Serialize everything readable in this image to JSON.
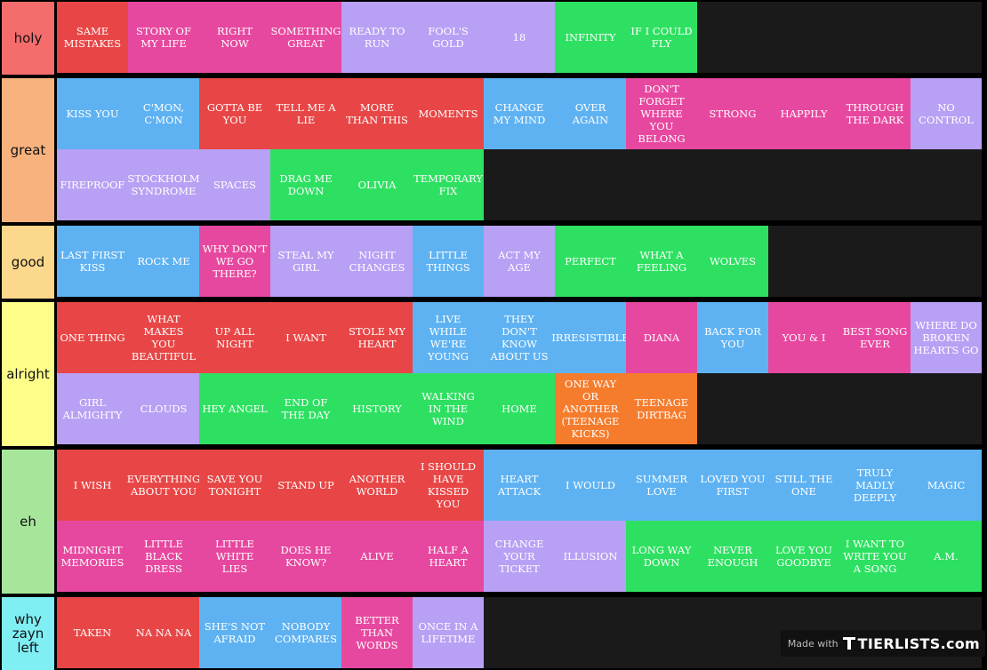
{
  "tiers": [
    {
      "name": "holy",
      "color": "#f56c6c",
      "rows": 1,
      "items": [
        {
          "text": "SAME MISTAKES",
          "color": "red"
        },
        {
          "text": "STORY OF MY LIFE",
          "color": "pink"
        },
        {
          "text": "RIGHT NOW",
          "color": "pink"
        },
        {
          "text": "SOMETHING GREAT",
          "color": "pink"
        },
        {
          "text": "READY TO RUN",
          "color": "purple"
        },
        {
          "text": "FOOL'S GOLD",
          "color": "purple"
        },
        {
          "text": "18",
          "color": "purple"
        },
        {
          "text": "INFINITY",
          "color": "green"
        },
        {
          "text": "IF I COULD FLY",
          "color": "green"
        }
      ]
    },
    {
      "name": "great",
      "color": "#f7b27d",
      "rows": 2,
      "items": [
        {
          "text": "KISS YOU",
          "color": "blue"
        },
        {
          "text": "C'MON, C'MON",
          "color": "blue"
        },
        {
          "text": "GOTTA BE YOU",
          "color": "red"
        },
        {
          "text": "TELL ME A LIE",
          "color": "red"
        },
        {
          "text": "MORE THAN THIS",
          "color": "red"
        },
        {
          "text": "MOMENTS",
          "color": "red"
        },
        {
          "text": "CHANGE MY MIND",
          "color": "blue"
        },
        {
          "text": "OVER AGAIN",
          "color": "blue"
        },
        {
          "text": "DON'T FORGET WHERE YOU BELONG",
          "color": "pink"
        },
        {
          "text": "STRONG",
          "color": "pink"
        },
        {
          "text": "HAPPILY",
          "color": "pink"
        },
        {
          "text": "THROUGH THE DARK",
          "color": "pink"
        },
        {
          "text": "NO CONTROL",
          "color": "purple"
        },
        {
          "text": "FIREPROOF",
          "color": "purple"
        },
        {
          "text": "STOCKHOLM SYNDROME",
          "color": "purple"
        },
        {
          "text": "SPACES",
          "color": "purple"
        },
        {
          "text": "DRAG ME DOWN",
          "color": "green"
        },
        {
          "text": "OLIVIA",
          "color": "green"
        },
        {
          "text": "TEMPORARY FIX",
          "color": "green"
        }
      ]
    },
    {
      "name": "good",
      "color": "#fbd88b",
      "rows": 1,
      "items": [
        {
          "text": "LAST FIRST KISS",
          "color": "blue"
        },
        {
          "text": "ROCK ME",
          "color": "blue"
        },
        {
          "text": "WHY DON'T WE GO THERE?",
          "color": "pink"
        },
        {
          "text": "STEAL MY GIRL",
          "color": "purple"
        },
        {
          "text": "NIGHT CHANGES",
          "color": "purple"
        },
        {
          "text": "LITTLE THINGS",
          "color": "blue"
        },
        {
          "text": "ACT MY AGE",
          "color": "purple"
        },
        {
          "text": "PERFECT",
          "color": "green"
        },
        {
          "text": "WHAT A FEELING",
          "color": "green"
        },
        {
          "text": "WOLVES",
          "color": "green"
        }
      ]
    },
    {
      "name": "alright",
      "color": "#fdfd8a",
      "rows": 2,
      "items": [
        {
          "text": "ONE THING",
          "color": "red"
        },
        {
          "text": "WHAT MAKES YOU BEAUTIFUL",
          "color": "red"
        },
        {
          "text": "UP ALL NIGHT",
          "color": "red"
        },
        {
          "text": "I WANT",
          "color": "red"
        },
        {
          "text": "STOLE MY HEART",
          "color": "red"
        },
        {
          "text": "LIVE WHILE WE'RE YOUNG",
          "color": "blue"
        },
        {
          "text": "THEY DON'T KNOW ABOUT US",
          "color": "blue"
        },
        {
          "text": "IRRESISTIBLE",
          "color": "blue"
        },
        {
          "text": "DIANA",
          "color": "pink"
        },
        {
          "text": "BACK FOR YOU",
          "color": "blue"
        },
        {
          "text": "YOU & I",
          "color": "pink"
        },
        {
          "text": "BEST SONG EVER",
          "color": "pink"
        },
        {
          "text": "WHERE DO BROKEN HEARTS GO",
          "color": "purple"
        },
        {
          "text": "GIRL ALMIGHTY",
          "color": "purple"
        },
        {
          "text": "CLOUDS",
          "color": "purple"
        },
        {
          "text": "HEY ANGEL",
          "color": "green"
        },
        {
          "text": "END OF THE DAY",
          "color": "green"
        },
        {
          "text": "HISTORY",
          "color": "green"
        },
        {
          "text": "WALKING IN THE WIND",
          "color": "green"
        },
        {
          "text": "HOME",
          "color": "green"
        },
        {
          "text": "ONE WAY OR ANOTHER (TEENAGE KICKS)",
          "color": "orange"
        },
        {
          "text": "TEENAGE DIRTBAG",
          "color": "orange"
        }
      ]
    },
    {
      "name": "eh",
      "color": "#a7e69a",
      "rows": 2,
      "items": [
        {
          "text": "I WISH",
          "color": "red"
        },
        {
          "text": "EVERYTHING ABOUT YOU",
          "color": "red"
        },
        {
          "text": "SAVE YOU TONIGHT",
          "color": "red"
        },
        {
          "text": "STAND UP",
          "color": "red"
        },
        {
          "text": "ANOTHER WORLD",
          "color": "red"
        },
        {
          "text": "I SHOULD HAVE KISSED YOU",
          "color": "red"
        },
        {
          "text": "HEART ATTACK",
          "color": "blue"
        },
        {
          "text": "I WOULD",
          "color": "blue"
        },
        {
          "text": "SUMMER LOVE",
          "color": "blue"
        },
        {
          "text": "LOVED YOU FIRST",
          "color": "blue"
        },
        {
          "text": "STILL THE ONE",
          "color": "blue"
        },
        {
          "text": "TRULY MADLY DEEPLY",
          "color": "blue"
        },
        {
          "text": "MAGIC",
          "color": "blue"
        },
        {
          "text": "MIDNIGHT MEMORIES",
          "color": "pink"
        },
        {
          "text": "LITTLE BLACK DRESS",
          "color": "pink"
        },
        {
          "text": "LITTLE WHITE LIES",
          "color": "pink"
        },
        {
          "text": "DOES HE KNOW?",
          "color": "pink"
        },
        {
          "text": "ALIVE",
          "color": "pink"
        },
        {
          "text": "HALF A HEART",
          "color": "pink"
        },
        {
          "text": "CHANGE YOUR TICKET",
          "color": "purple"
        },
        {
          "text": "ILLUSION",
          "color": "purple"
        },
        {
          "text": "LONG WAY DOWN",
          "color": "green"
        },
        {
          "text": "NEVER ENOUGH",
          "color": "green"
        },
        {
          "text": "LOVE YOU GOODBYE",
          "color": "green"
        },
        {
          "text": "I WANT TO WRITE YOU A SONG",
          "color": "green"
        },
        {
          "text": "A.M.",
          "color": "green"
        }
      ]
    },
    {
      "name": "why zayn left",
      "color": "#7feff4",
      "rows": 1,
      "items": [
        {
          "text": "TAKEN",
          "color": "red"
        },
        {
          "text": "NA NA NA",
          "color": "red"
        },
        {
          "text": "SHE'S NOT AFRAID",
          "color": "blue"
        },
        {
          "text": "NOBODY COMPARES",
          "color": "blue"
        },
        {
          "text": "BETTER THAN WORDS",
          "color": "pink"
        },
        {
          "text": "ONCE IN A LIFETIME",
          "color": "purple"
        }
      ]
    }
  ],
  "watermark": {
    "made_with": "Made with",
    "brand": "TIERLISTS.com"
  }
}
